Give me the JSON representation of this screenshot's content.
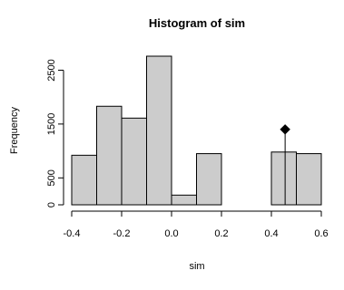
{
  "chart_data": {
    "type": "bar",
    "title": "Histogram of sim",
    "xlabel": "sim",
    "ylabel": "Frequency",
    "bin_edges": [
      -0.4,
      -0.3,
      -0.2,
      -0.1,
      0.0,
      0.1,
      0.2,
      0.3,
      0.4,
      0.5,
      0.6
    ],
    "values": [
      920,
      1830,
      1610,
      2760,
      180,
      950,
      0,
      0,
      980,
      950
    ],
    "xlim": [
      -0.4,
      0.6
    ],
    "ylim": [
      0,
      2760
    ],
    "x_ticks": [
      -0.4,
      -0.2,
      0.0,
      0.2,
      0.4,
      0.6
    ],
    "x_tick_labels": [
      "-0.4",
      "-0.2",
      "0.0",
      "0.2",
      "0.4",
      "0.6"
    ],
    "y_ticks": [
      0,
      500,
      1500,
      2500
    ],
    "y_tick_labels": [
      "0",
      "500",
      "1500",
      "2500"
    ],
    "bar_color": "#cccccc",
    "grid": false,
    "marker": {
      "shape": "diamond",
      "x": 0.455,
      "y": 1400,
      "color": "#000000"
    }
  }
}
